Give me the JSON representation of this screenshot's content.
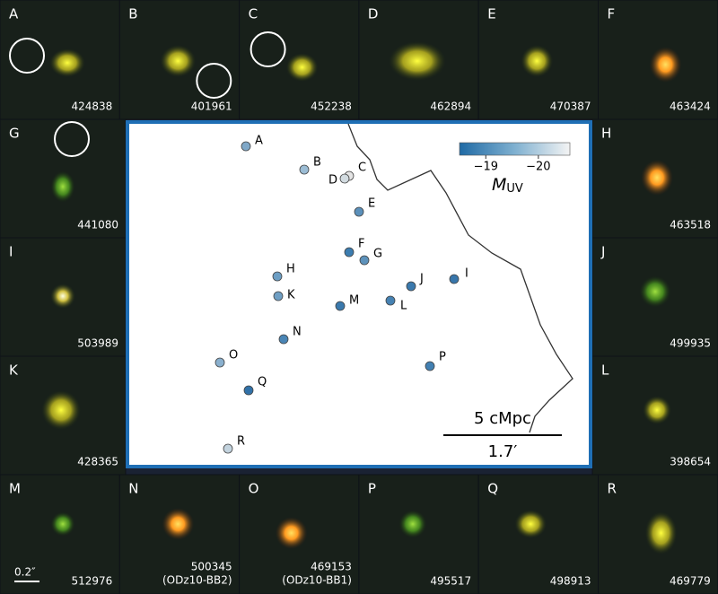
{
  "panels": [
    {
      "letter": "A",
      "id": "424838"
    },
    {
      "letter": "B",
      "id": "401961"
    },
    {
      "letter": "C",
      "id": "452238"
    },
    {
      "letter": "D",
      "id": "462894"
    },
    {
      "letter": "E",
      "id": "470387"
    },
    {
      "letter": "F",
      "id": "463424"
    },
    {
      "letter": "G",
      "id": "441080"
    },
    {
      "letter": "H",
      "id": "463518"
    },
    {
      "letter": "I",
      "id": "503989"
    },
    {
      "letter": "J",
      "id": "499935"
    },
    {
      "letter": "K",
      "id": "428365"
    },
    {
      "letter": "L",
      "id": "398654"
    },
    {
      "letter": "M",
      "id": "512976"
    },
    {
      "letter": "N",
      "id": "500345",
      "note": "(ODz10-BB2)"
    },
    {
      "letter": "O",
      "id": "469153",
      "note": "(ODz10-BB1)"
    },
    {
      "letter": "P",
      "id": "495517"
    },
    {
      "letter": "Q",
      "id": "498913"
    },
    {
      "letter": "R",
      "id": "469779"
    }
  ],
  "cutout_scale": "0.2″",
  "map": {
    "points": [
      "A",
      "B",
      "C",
      "D",
      "E",
      "F",
      "G",
      "H",
      "I",
      "J",
      "K",
      "L",
      "M",
      "N",
      "O",
      "P",
      "Q",
      "R"
    ],
    "colorbar": {
      "label": "M",
      "label_sub": "UV",
      "ticks": [
        {
          "value": -19,
          "label": "−19"
        },
        {
          "value": -20,
          "label": "−20"
        }
      ]
    },
    "scale_top": "5 cMpc",
    "scale_bottom": "1.7′"
  }
}
